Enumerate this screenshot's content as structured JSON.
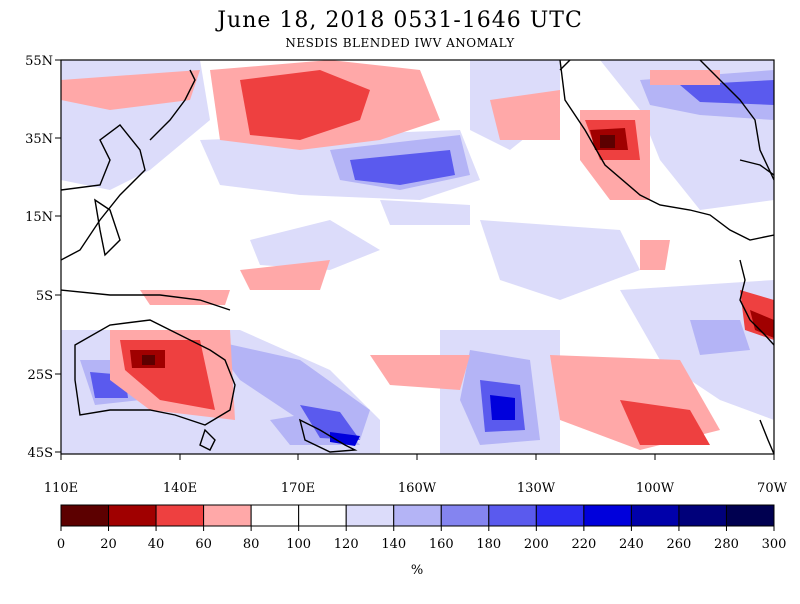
{
  "header": {
    "title": "June 18, 2018  0531-1646 UTC",
    "subtitle": "NESDIS BLENDED IWV ANOMALY"
  },
  "map": {
    "lat_labels": [
      "55N",
      "35N",
      "15N",
      "5S",
      "25S",
      "45S"
    ],
    "lon_labels": [
      "110E",
      "140E",
      "170E",
      "160W",
      "130W",
      "100W",
      "70W"
    ]
  },
  "colorbar": {
    "unit": "%",
    "ticks": [
      "0",
      "20",
      "40",
      "60",
      "80",
      "100",
      "120",
      "140",
      "160",
      "180",
      "200",
      "220",
      "240",
      "260",
      "280",
      "300"
    ],
    "colors": [
      "#5c0000",
      "#a00000",
      "#ee4040",
      "#ffa8a8",
      "#ffffff",
      "#ffffff",
      "#dcdcfa",
      "#b4b4f6",
      "#8484f0",
      "#5a5aee",
      "#2c2cf0",
      "#0000dc",
      "#0000aa",
      "#00007a",
      "#000050"
    ]
  }
}
